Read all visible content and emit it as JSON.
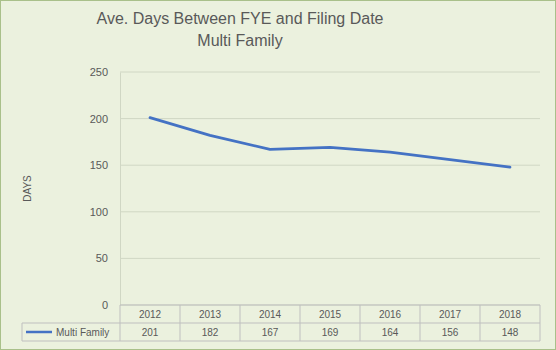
{
  "chart_data": {
    "type": "line",
    "title": "Ave. Days Between FYE and Filing Date",
    "subtitle": "Multi Family",
    "y_label": "DAYS",
    "categories": [
      "2012",
      "2013",
      "2014",
      "2015",
      "2016",
      "2017",
      "2018"
    ],
    "series": [
      {
        "name": "Multi Family",
        "color": "#4472c4",
        "values": [
          201,
          182,
          167,
          169,
          164,
          156,
          148
        ]
      }
    ],
    "ylim": [
      0,
      250
    ],
    "yticks": [
      0,
      50,
      100,
      150,
      200,
      250
    ],
    "grid": true
  }
}
